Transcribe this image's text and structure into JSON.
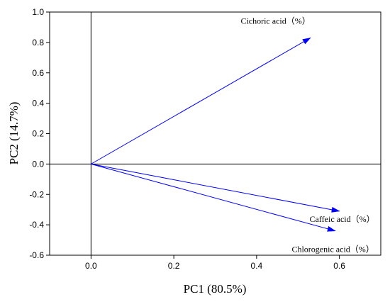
{
  "chart_data": {
    "type": "biplot",
    "xlabel": "PC1 (80.5%)",
    "ylabel": "PC2 (14.7%)",
    "xlim": [
      -0.1,
      0.7
    ],
    "ylim": [
      -0.6,
      1.0
    ],
    "xticks": [
      0.0,
      0.2,
      0.4,
      0.6
    ],
    "yticks": [
      -0.6,
      -0.4,
      -0.2,
      0.0,
      0.2,
      0.4,
      0.6,
      0.8,
      1.0
    ],
    "xtick_labels": [
      "0.0",
      "0.2",
      "0.4",
      "0.6"
    ],
    "ytick_labels": [
      "-0.6",
      "-0.4",
      "-0.2",
      "0.0",
      "0.2",
      "0.4",
      "0.6",
      "0.8",
      "1.0"
    ],
    "vector_color": "#0000ff",
    "vectors": [
      {
        "name": "Cichoric acid（%）",
        "x": 0.53,
        "y": 0.83
      },
      {
        "name": "Caffeic acid（%）",
        "x": 0.6,
        "y": -0.31
      },
      {
        "name": "Chlorogenic acid（%）",
        "x": 0.59,
        "y": -0.44
      }
    ],
    "grid": false
  }
}
